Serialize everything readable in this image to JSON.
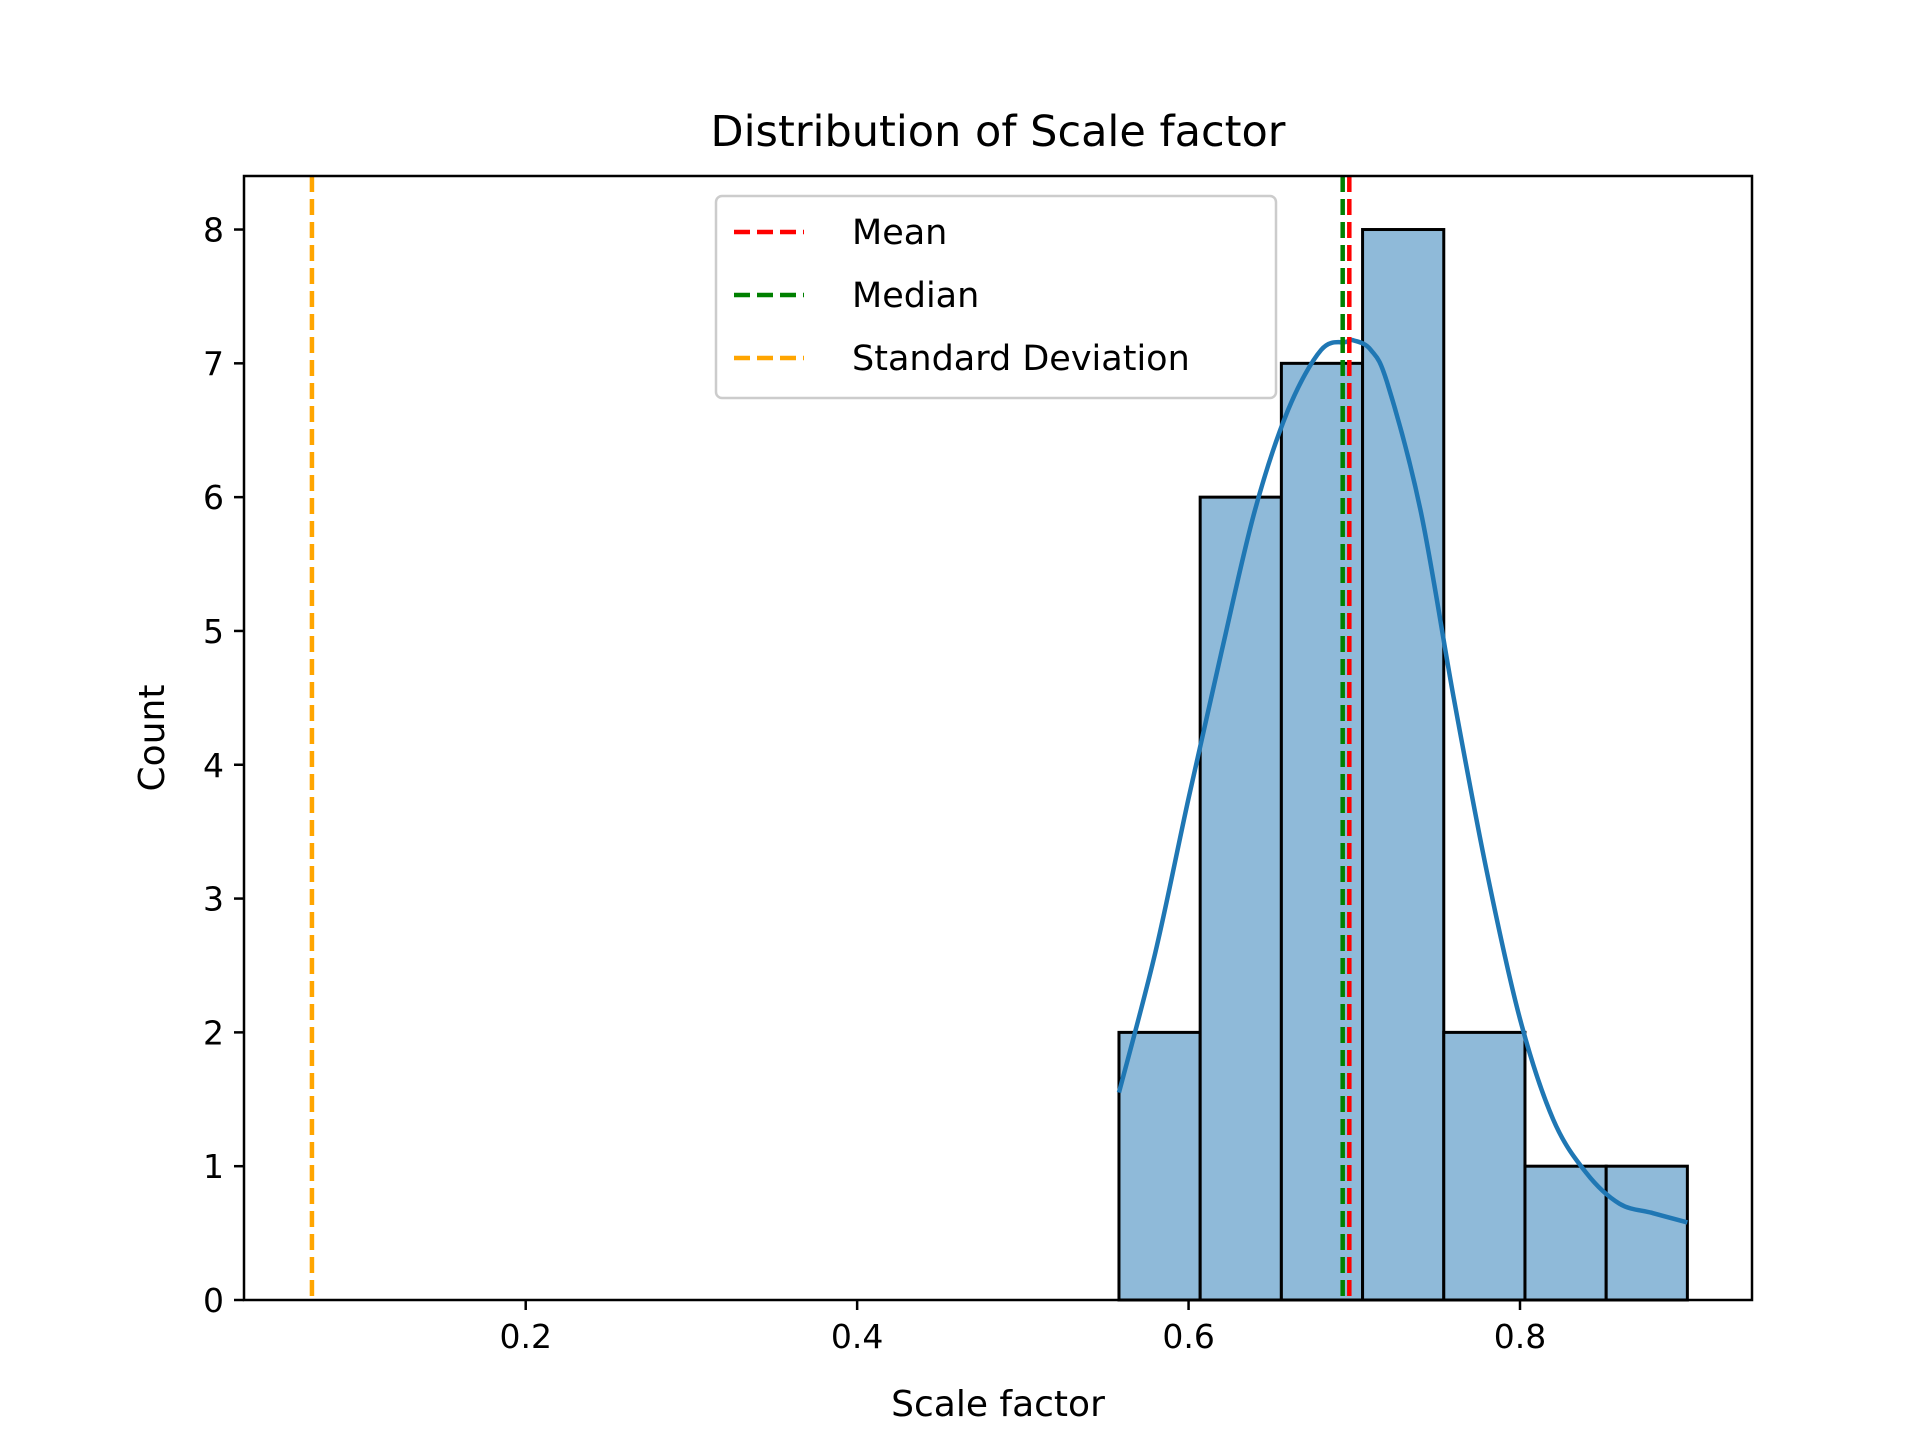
{
  "chart_data": {
    "type": "bar",
    "title": "Distribution of Scale factor",
    "xlabel": "Scale factor",
    "ylabel": "Count",
    "xlim": [
      0.03,
      0.94
    ],
    "ylim": [
      0,
      8.4
    ],
    "xticks": [
      0.2,
      0.4,
      0.6,
      0.8
    ],
    "xtick_labels": [
      "0.2",
      "0.4",
      "0.6",
      "0.8"
    ],
    "yticks": [
      0,
      1,
      2,
      3,
      4,
      5,
      6,
      7,
      8
    ],
    "ytick_labels": [
      "0",
      "1",
      "2",
      "3",
      "4",
      "5",
      "6",
      "7",
      "8"
    ],
    "grid": false,
    "histogram": {
      "bin_edges": [
        0.558,
        0.607,
        0.656,
        0.705,
        0.754,
        0.803,
        0.852,
        0.901
      ],
      "counts": [
        2,
        6,
        7,
        8,
        2,
        1,
        1
      ],
      "fill_color": "#8fbad9",
      "edge_color": "#000000"
    },
    "kde": {
      "color": "#1f77b4",
      "x": [
        0.558,
        0.58,
        0.6,
        0.62,
        0.64,
        0.66,
        0.68,
        0.695,
        0.7,
        0.71,
        0.72,
        0.74,
        0.76,
        0.78,
        0.8,
        0.82,
        0.84,
        0.86,
        0.88,
        0.901
      ],
      "y": [
        1.55,
        2.6,
        3.75,
        4.85,
        5.9,
        6.65,
        7.1,
        7.16,
        7.17,
        7.1,
        6.85,
        5.9,
        4.5,
        3.2,
        2.1,
        1.35,
        0.95,
        0.72,
        0.65,
        0.58
      ]
    },
    "lines": [
      {
        "name": "Mean",
        "x": 0.697,
        "color": "#ff0000",
        "style": "dashed"
      },
      {
        "name": "Median",
        "x": 0.693,
        "color": "#008000",
        "style": "dashed"
      },
      {
        "name": "Standard Deviation",
        "x": 0.071,
        "color": "#ffa500",
        "style": "dashed"
      }
    ],
    "legend": {
      "position": "upper center",
      "entries": [
        "Mean",
        "Median",
        "Standard Deviation"
      ]
    }
  }
}
